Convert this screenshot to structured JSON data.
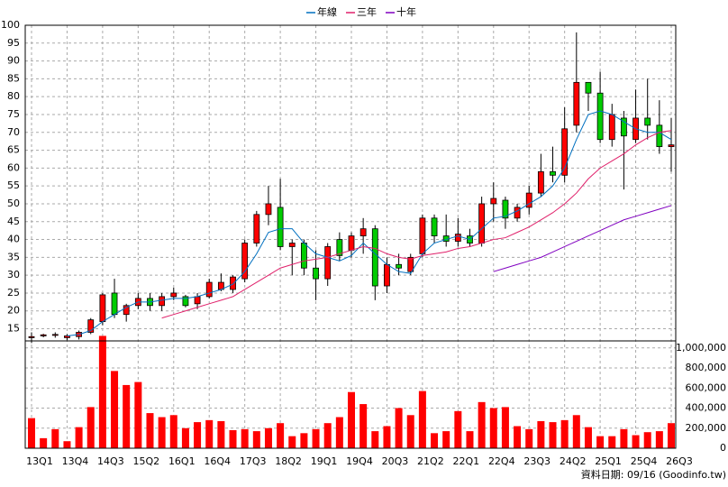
{
  "chart_data": [
    {
      "type": "candlestick",
      "categories": [
        "13Q1",
        null,
        null,
        "13Q4",
        null,
        null,
        "14Q3",
        null,
        null,
        "15Q2",
        null,
        null,
        "16Q1",
        null,
        null,
        "16Q4",
        null,
        null,
        "17Q3",
        null,
        null,
        "18Q2",
        null,
        null,
        "19Q1",
        null,
        null,
        "19Q4",
        null,
        null,
        "20Q3",
        null,
        null,
        "21Q2",
        null,
        null,
        "22Q1",
        null,
        null,
        "22Q4",
        null,
        null,
        "23Q3",
        null,
        null,
        "24Q2",
        null,
        null,
        "25Q1",
        null,
        null,
        "25Q4",
        null,
        null,
        "26Q3"
      ],
      "open": [
        12.5,
        13,
        13.2,
        12.5,
        12.8,
        14,
        17,
        25,
        19,
        21.5,
        23.5,
        21.5,
        24,
        24,
        22,
        24,
        26,
        26,
        29,
        39,
        47,
        49,
        38,
        39,
        32,
        29,
        40,
        37,
        41,
        43,
        27,
        33,
        31,
        36,
        46,
        41,
        39.5,
        41,
        39,
        50,
        51,
        46,
        49,
        53,
        59,
        58,
        72,
        84,
        81,
        68,
        74,
        68,
        74,
        72,
        66
      ],
      "high": [
        14,
        13.6,
        14,
        13.5,
        14.5,
        18,
        25,
        29,
        22,
        25,
        25,
        25,
        26.5,
        24.5,
        25,
        29,
        30.5,
        30,
        40,
        48,
        55,
        57,
        40,
        40,
        37,
        39,
        42,
        42,
        46,
        44,
        35,
        36,
        36,
        47,
        47,
        47,
        46,
        43,
        52,
        56,
        52,
        50,
        55,
        64,
        66,
        77,
        98,
        84,
        87,
        78,
        76,
        82,
        85,
        79,
        74
      ],
      "low": [
        11,
        12.6,
        12.5,
        11.8,
        12,
        13.5,
        16,
        18,
        17,
        20.5,
        20,
        20,
        23,
        21,
        20.5,
        23.5,
        25.5,
        25,
        28,
        38,
        44,
        37,
        30,
        30,
        23,
        27,
        34,
        35,
        36,
        23,
        25,
        30,
        30,
        35,
        39,
        38,
        38,
        38,
        38,
        45,
        43,
        45,
        47,
        52,
        56,
        56,
        70,
        76,
        67,
        66,
        54,
        67,
        68,
        64,
        59
      ],
      "close": [
        12.8,
        13.3,
        13.4,
        13,
        14,
        17.5,
        24.5,
        19,
        21.5,
        23.5,
        21.5,
        24,
        25,
        21.5,
        24,
        28,
        28,
        29.5,
        39,
        47,
        50,
        38,
        39,
        32,
        29,
        38,
        35.5,
        41,
        43,
        27,
        33,
        32,
        35,
        46,
        41,
        39.5,
        41.5,
        39,
        50,
        51.5,
        46,
        49,
        53,
        59,
        58,
        71,
        84,
        81,
        68,
        75,
        69,
        74,
        72,
        66,
        66.5
      ],
      "up_color": "#ff0000",
      "down_color": "#00cc00",
      "series": [
        {
          "name": "年線",
          "color": "#0070c0",
          "values": [
            null,
            null,
            null,
            13,
            13.4,
            14.5,
            17,
            19,
            21,
            22.5,
            22.5,
            23,
            23.5,
            23.5,
            24,
            25,
            26,
            27.5,
            31,
            36,
            42,
            43,
            43,
            39,
            36,
            35,
            34,
            35.5,
            39,
            36,
            33,
            31,
            30.5,
            36,
            39,
            40,
            41,
            40,
            43,
            46,
            46.5,
            48,
            50,
            52,
            55,
            60,
            68,
            75,
            76,
            75,
            73,
            71,
            70,
            70,
            68
          ]
        },
        {
          "name": "三年",
          "color": "#e0206a",
          "values": [
            null,
            null,
            null,
            null,
            null,
            null,
            null,
            null,
            null,
            null,
            null,
            18,
            19,
            20,
            21,
            22,
            23,
            24,
            26,
            28,
            30,
            32,
            33,
            34,
            34.5,
            35,
            36,
            37,
            38,
            37.5,
            36,
            35,
            34.5,
            35.5,
            36,
            36.5,
            37.5,
            38,
            39,
            40,
            40.5,
            42,
            43.5,
            45.5,
            47.5,
            50,
            53,
            57,
            60,
            62,
            64,
            66.5,
            68.5,
            70,
            70.5
          ]
        },
        {
          "name": "十年",
          "color": "#8000c0",
          "values": [
            null,
            null,
            null,
            null,
            null,
            null,
            null,
            null,
            null,
            null,
            null,
            null,
            null,
            null,
            null,
            null,
            null,
            null,
            null,
            null,
            null,
            null,
            null,
            null,
            null,
            null,
            null,
            null,
            null,
            null,
            null,
            null,
            null,
            null,
            null,
            null,
            null,
            null,
            null,
            31,
            32,
            33,
            34,
            35,
            36.5,
            38,
            39.5,
            41,
            42.5,
            44,
            45.5,
            46.5,
            47.5,
            48.5,
            49.5
          ]
        }
      ],
      "ylim": [
        11.6,
        100
      ],
      "yticks": [
        15,
        20,
        25,
        30,
        35,
        40,
        45,
        50,
        55,
        60,
        65,
        70,
        75,
        80,
        85,
        90,
        95,
        100
      ],
      "grid": true
    },
    {
      "type": "bar",
      "color": "#ff0000",
      "values": [
        300000,
        100000,
        190000,
        70000,
        210000,
        410000,
        1120000,
        770000,
        630000,
        660000,
        350000,
        310000,
        330000,
        200000,
        260000,
        280000,
        270000,
        180000,
        190000,
        170000,
        200000,
        250000,
        120000,
        150000,
        190000,
        250000,
        310000,
        560000,
        440000,
        170000,
        220000,
        400000,
        330000,
        570000,
        150000,
        170000,
        370000,
        170000,
        460000,
        400000,
        410000,
        220000,
        190000,
        270000,
        260000,
        280000,
        330000,
        210000,
        120000,
        120000,
        190000,
        130000,
        160000,
        170000,
        250000
      ],
      "ylim": [
        0,
        1070000
      ],
      "yticks": [
        0,
        {
          "value": 200000,
          "label": "200,000"
        },
        {
          "value": 400000,
          "label": "400,000"
        },
        {
          "value": 600000,
          "label": "600,000"
        },
        {
          "value": 800000,
          "label": "800,000"
        },
        {
          "value": 1000000,
          "label": "1,000,000"
        }
      ],
      "grid": true,
      "footer": "資料日期: 09/16 (Goodinfo.tw)"
    }
  ]
}
